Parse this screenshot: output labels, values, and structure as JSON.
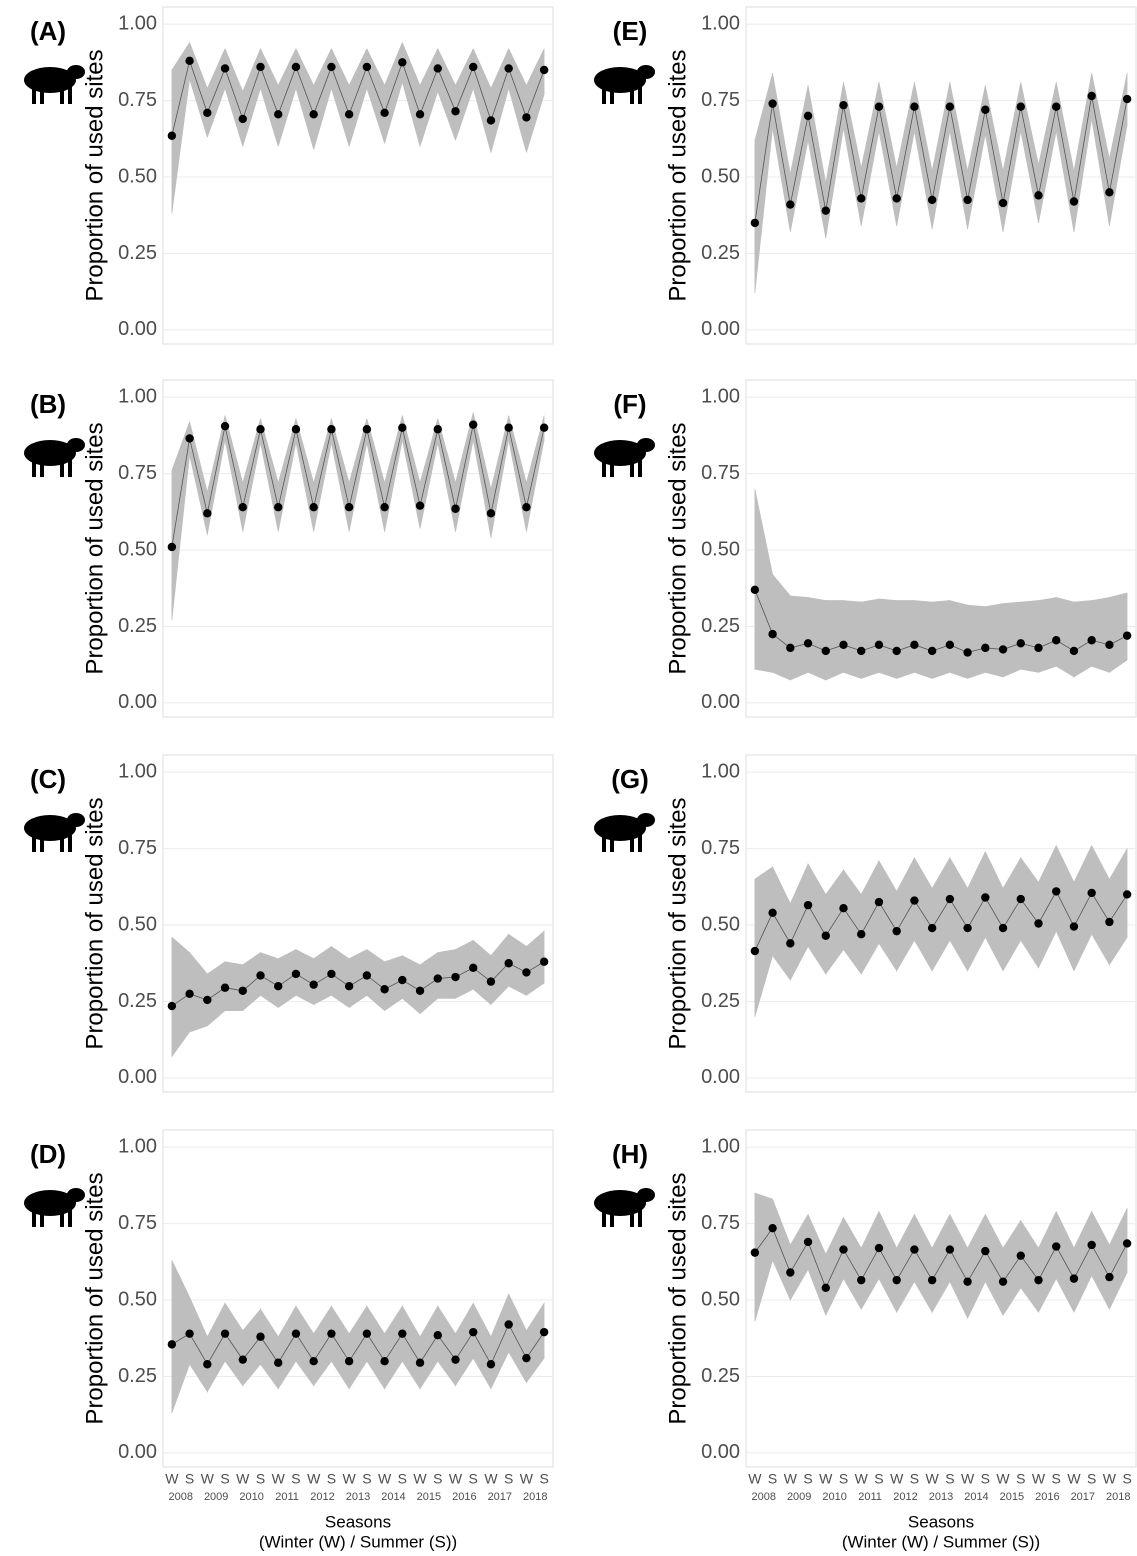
{
  "chart_data": [
    {
      "type": "line",
      "panel": "(A)",
      "ylabel": "Proportion of used sites",
      "ylim": [
        -0.046,
        1.056
      ],
      "yticks": [
        {
          "value": 0,
          "label": "0.00"
        },
        {
          "value": 0.25,
          "label": "0.25"
        },
        {
          "value": 0.5,
          "label": "0.50"
        },
        {
          "value": 0.75,
          "label": "0.75"
        },
        {
          "value": 1,
          "label": "1.00"
        }
      ],
      "grid": true,
      "color": "#000000",
      "band_color": "#bebebe",
      "values": [
        0.635,
        0.88,
        0.71,
        0.855,
        0.69,
        0.86,
        0.705,
        0.86,
        0.705,
        0.86,
        0.705,
        0.86,
        0.71,
        0.875,
        0.705,
        0.855,
        0.715,
        0.86,
        0.685,
        0.855,
        0.695,
        0.85
      ],
      "lower": [
        0.38,
        0.82,
        0.63,
        0.79,
        0.6,
        0.79,
        0.6,
        0.79,
        0.59,
        0.79,
        0.6,
        0.79,
        0.61,
        0.81,
        0.6,
        0.78,
        0.62,
        0.79,
        0.58,
        0.79,
        0.58,
        0.77
      ],
      "upper": [
        0.85,
        0.94,
        0.79,
        0.92,
        0.78,
        0.92,
        0.8,
        0.92,
        0.8,
        0.92,
        0.8,
        0.92,
        0.8,
        0.94,
        0.8,
        0.92,
        0.8,
        0.92,
        0.79,
        0.92,
        0.8,
        0.92
      ]
    },
    {
      "type": "line",
      "panel": "(B)",
      "ylabel": "Proportion of used sites",
      "ylim": [
        -0.046,
        1.056
      ],
      "yticks": [
        {
          "value": 0,
          "label": "0.00"
        },
        {
          "value": 0.25,
          "label": "0.25"
        },
        {
          "value": 0.5,
          "label": "0.50"
        },
        {
          "value": 0.75,
          "label": "0.75"
        },
        {
          "value": 1,
          "label": "1.00"
        }
      ],
      "grid": true,
      "color": "#000000",
      "band_color": "#bebebe",
      "values": [
        0.51,
        0.865,
        0.62,
        0.905,
        0.64,
        0.895,
        0.64,
        0.895,
        0.64,
        0.895,
        0.64,
        0.895,
        0.64,
        0.9,
        0.645,
        0.895,
        0.635,
        0.91,
        0.62,
        0.9,
        0.64,
        0.9
      ],
      "lower": [
        0.27,
        0.81,
        0.55,
        0.86,
        0.56,
        0.85,
        0.56,
        0.85,
        0.56,
        0.85,
        0.56,
        0.85,
        0.56,
        0.86,
        0.57,
        0.85,
        0.56,
        0.86,
        0.54,
        0.86,
        0.56,
        0.86
      ],
      "upper": [
        0.76,
        0.92,
        0.69,
        0.94,
        0.72,
        0.93,
        0.72,
        0.93,
        0.72,
        0.93,
        0.72,
        0.93,
        0.72,
        0.94,
        0.72,
        0.93,
        0.72,
        0.95,
        0.7,
        0.94,
        0.72,
        0.94
      ]
    },
    {
      "type": "line",
      "panel": "(C)",
      "ylabel": "Proportion of used sites",
      "ylim": [
        -0.046,
        1.056
      ],
      "yticks": [
        {
          "value": 0,
          "label": "0.00"
        },
        {
          "value": 0.25,
          "label": "0.25"
        },
        {
          "value": 0.5,
          "label": "0.50"
        },
        {
          "value": 0.75,
          "label": "0.75"
        },
        {
          "value": 1,
          "label": "1.00"
        }
      ],
      "grid": true,
      "color": "#000000",
      "band_color": "#bebebe",
      "values": [
        0.235,
        0.275,
        0.255,
        0.295,
        0.285,
        0.335,
        0.3,
        0.34,
        0.305,
        0.34,
        0.3,
        0.335,
        0.29,
        0.32,
        0.285,
        0.325,
        0.33,
        0.36,
        0.315,
        0.375,
        0.345,
        0.38
      ],
      "lower": [
        0.07,
        0.15,
        0.17,
        0.22,
        0.22,
        0.27,
        0.23,
        0.27,
        0.24,
        0.27,
        0.23,
        0.27,
        0.22,
        0.26,
        0.21,
        0.26,
        0.26,
        0.29,
        0.24,
        0.3,
        0.27,
        0.31
      ],
      "upper": [
        0.46,
        0.41,
        0.34,
        0.38,
        0.37,
        0.41,
        0.39,
        0.42,
        0.39,
        0.43,
        0.39,
        0.42,
        0.38,
        0.4,
        0.37,
        0.41,
        0.42,
        0.45,
        0.4,
        0.47,
        0.43,
        0.48
      ]
    },
    {
      "type": "line",
      "panel": "(D)",
      "ylabel": "Proportion of used sites",
      "ylim": [
        -0.046,
        1.056
      ],
      "yticks": [
        {
          "value": 0,
          "label": "0.00"
        },
        {
          "value": 0.25,
          "label": "0.25"
        },
        {
          "value": 0.5,
          "label": "0.50"
        },
        {
          "value": 0.75,
          "label": "0.75"
        },
        {
          "value": 1,
          "label": "1.00"
        }
      ],
      "grid": true,
      "color": "#000000",
      "band_color": "#bebebe",
      "categories": [
        "W",
        "S",
        "W",
        "S",
        "W",
        "S",
        "W",
        "S",
        "W",
        "S",
        "W",
        "S",
        "W",
        "S",
        "W",
        "S",
        "W",
        "S",
        "W",
        "S",
        "W",
        "S"
      ],
      "years": [
        "2008",
        "2009",
        "2010",
        "2011",
        "2012",
        "2013",
        "2014",
        "2015",
        "2016",
        "2017",
        "2018"
      ],
      "xlabel": [
        "Seasons",
        "(Winter (W) / Summer (S))"
      ],
      "values": [
        0.355,
        0.39,
        0.29,
        0.39,
        0.305,
        0.38,
        0.295,
        0.39,
        0.3,
        0.39,
        0.3,
        0.39,
        0.3,
        0.39,
        0.295,
        0.385,
        0.305,
        0.395,
        0.29,
        0.42,
        0.31,
        0.395
      ],
      "lower": [
        0.13,
        0.29,
        0.2,
        0.3,
        0.22,
        0.29,
        0.21,
        0.3,
        0.22,
        0.3,
        0.21,
        0.3,
        0.21,
        0.3,
        0.21,
        0.3,
        0.22,
        0.31,
        0.21,
        0.33,
        0.23,
        0.31
      ],
      "upper": [
        0.63,
        0.51,
        0.38,
        0.49,
        0.4,
        0.47,
        0.38,
        0.48,
        0.39,
        0.48,
        0.39,
        0.48,
        0.39,
        0.48,
        0.38,
        0.48,
        0.39,
        0.49,
        0.38,
        0.52,
        0.4,
        0.49
      ]
    },
    {
      "type": "line",
      "panel": "(E)",
      "ylabel": "Proportion of used sites",
      "ylim": [
        -0.046,
        1.056
      ],
      "yticks": [
        {
          "value": 0,
          "label": "0.00"
        },
        {
          "value": 0.25,
          "label": "0.25"
        },
        {
          "value": 0.5,
          "label": "0.50"
        },
        {
          "value": 0.75,
          "label": "0.75"
        },
        {
          "value": 1,
          "label": "1.00"
        }
      ],
      "grid": true,
      "color": "#000000",
      "band_color": "#bebebe",
      "values": [
        0.35,
        0.74,
        0.41,
        0.7,
        0.39,
        0.735,
        0.43,
        0.73,
        0.43,
        0.73,
        0.425,
        0.73,
        0.425,
        0.72,
        0.415,
        0.73,
        0.44,
        0.73,
        0.42,
        0.765,
        0.45,
        0.755
      ],
      "lower": [
        0.12,
        0.66,
        0.32,
        0.62,
        0.3,
        0.66,
        0.34,
        0.65,
        0.34,
        0.65,
        0.33,
        0.65,
        0.33,
        0.64,
        0.32,
        0.65,
        0.35,
        0.65,
        0.32,
        0.69,
        0.34,
        0.67
      ],
      "upper": [
        0.62,
        0.84,
        0.51,
        0.8,
        0.48,
        0.81,
        0.53,
        0.81,
        0.53,
        0.81,
        0.52,
        0.81,
        0.52,
        0.8,
        0.52,
        0.81,
        0.54,
        0.81,
        0.52,
        0.84,
        0.56,
        0.84
      ]
    },
    {
      "type": "line",
      "panel": "(F)",
      "ylabel": "Proportion of used sites",
      "ylim": [
        -0.046,
        1.056
      ],
      "yticks": [
        {
          "value": 0,
          "label": "0.00"
        },
        {
          "value": 0.25,
          "label": "0.25"
        },
        {
          "value": 0.5,
          "label": "0.50"
        },
        {
          "value": 0.75,
          "label": "0.75"
        },
        {
          "value": 1,
          "label": "1.00"
        }
      ],
      "grid": true,
      "color": "#000000",
      "band_color": "#bebebe",
      "values": [
        0.37,
        0.225,
        0.18,
        0.195,
        0.17,
        0.19,
        0.17,
        0.19,
        0.17,
        0.19,
        0.17,
        0.19,
        0.165,
        0.18,
        0.175,
        0.195,
        0.18,
        0.205,
        0.17,
        0.205,
        0.19,
        0.22
      ],
      "lower": [
        0.11,
        0.1,
        0.075,
        0.1,
        0.075,
        0.1,
        0.08,
        0.1,
        0.08,
        0.1,
        0.08,
        0.1,
        0.08,
        0.1,
        0.085,
        0.11,
        0.1,
        0.12,
        0.085,
        0.12,
        0.1,
        0.14
      ],
      "upper": [
        0.7,
        0.42,
        0.35,
        0.345,
        0.335,
        0.335,
        0.33,
        0.34,
        0.335,
        0.335,
        0.33,
        0.335,
        0.32,
        0.315,
        0.325,
        0.33,
        0.335,
        0.345,
        0.33,
        0.335,
        0.345,
        0.36
      ]
    },
    {
      "type": "line",
      "panel": "(G)",
      "ylabel": "Proportion of used sites",
      "ylim": [
        -0.046,
        1.056
      ],
      "yticks": [
        {
          "value": 0,
          "label": "0.00"
        },
        {
          "value": 0.25,
          "label": "0.25"
        },
        {
          "value": 0.5,
          "label": "0.50"
        },
        {
          "value": 0.75,
          "label": "0.75"
        },
        {
          "value": 1,
          "label": "1.00"
        }
      ],
      "grid": true,
      "color": "#000000",
      "band_color": "#bebebe",
      "values": [
        0.415,
        0.54,
        0.44,
        0.565,
        0.465,
        0.555,
        0.47,
        0.575,
        0.48,
        0.58,
        0.49,
        0.585,
        0.49,
        0.59,
        0.49,
        0.585,
        0.505,
        0.61,
        0.495,
        0.605,
        0.51,
        0.6
      ],
      "lower": [
        0.2,
        0.4,
        0.32,
        0.43,
        0.34,
        0.42,
        0.34,
        0.44,
        0.35,
        0.45,
        0.35,
        0.45,
        0.35,
        0.46,
        0.35,
        0.45,
        0.36,
        0.48,
        0.35,
        0.47,
        0.37,
        0.46
      ],
      "upper": [
        0.65,
        0.69,
        0.57,
        0.7,
        0.6,
        0.68,
        0.6,
        0.71,
        0.61,
        0.72,
        0.62,
        0.72,
        0.62,
        0.74,
        0.62,
        0.72,
        0.64,
        0.76,
        0.64,
        0.76,
        0.65,
        0.75
      ]
    },
    {
      "type": "line",
      "panel": "(H)",
      "ylabel": "Proportion of used sites",
      "ylim": [
        -0.046,
        1.056
      ],
      "yticks": [
        {
          "value": 0,
          "label": "0.00"
        },
        {
          "value": 0.25,
          "label": "0.25"
        },
        {
          "value": 0.5,
          "label": "0.50"
        },
        {
          "value": 0.75,
          "label": "0.75"
        },
        {
          "value": 1,
          "label": "1.00"
        }
      ],
      "grid": true,
      "color": "#000000",
      "band_color": "#bebebe",
      "categories": [
        "W",
        "S",
        "W",
        "S",
        "W",
        "S",
        "W",
        "S",
        "W",
        "S",
        "W",
        "S",
        "W",
        "S",
        "W",
        "S",
        "W",
        "S",
        "W",
        "S",
        "W",
        "S"
      ],
      "years": [
        "2008",
        "2009",
        "2010",
        "2011",
        "2012",
        "2013",
        "2014",
        "2015",
        "2016",
        "2017",
        "2018"
      ],
      "xlabel": [
        "Seasons",
        "(Winter (W) / Summer (S))"
      ],
      "values": [
        0.655,
        0.735,
        0.59,
        0.69,
        0.54,
        0.665,
        0.565,
        0.67,
        0.565,
        0.665,
        0.565,
        0.665,
        0.56,
        0.66,
        0.56,
        0.645,
        0.565,
        0.675,
        0.57,
        0.68,
        0.575,
        0.685
      ],
      "lower": [
        0.43,
        0.63,
        0.5,
        0.6,
        0.45,
        0.57,
        0.47,
        0.57,
        0.46,
        0.56,
        0.46,
        0.56,
        0.44,
        0.56,
        0.45,
        0.54,
        0.46,
        0.57,
        0.46,
        0.58,
        0.47,
        0.59
      ],
      "upper": [
        0.85,
        0.83,
        0.68,
        0.78,
        0.65,
        0.77,
        0.67,
        0.79,
        0.67,
        0.78,
        0.67,
        0.78,
        0.67,
        0.78,
        0.67,
        0.76,
        0.67,
        0.79,
        0.67,
        0.79,
        0.68,
        0.8
      ]
    }
  ]
}
